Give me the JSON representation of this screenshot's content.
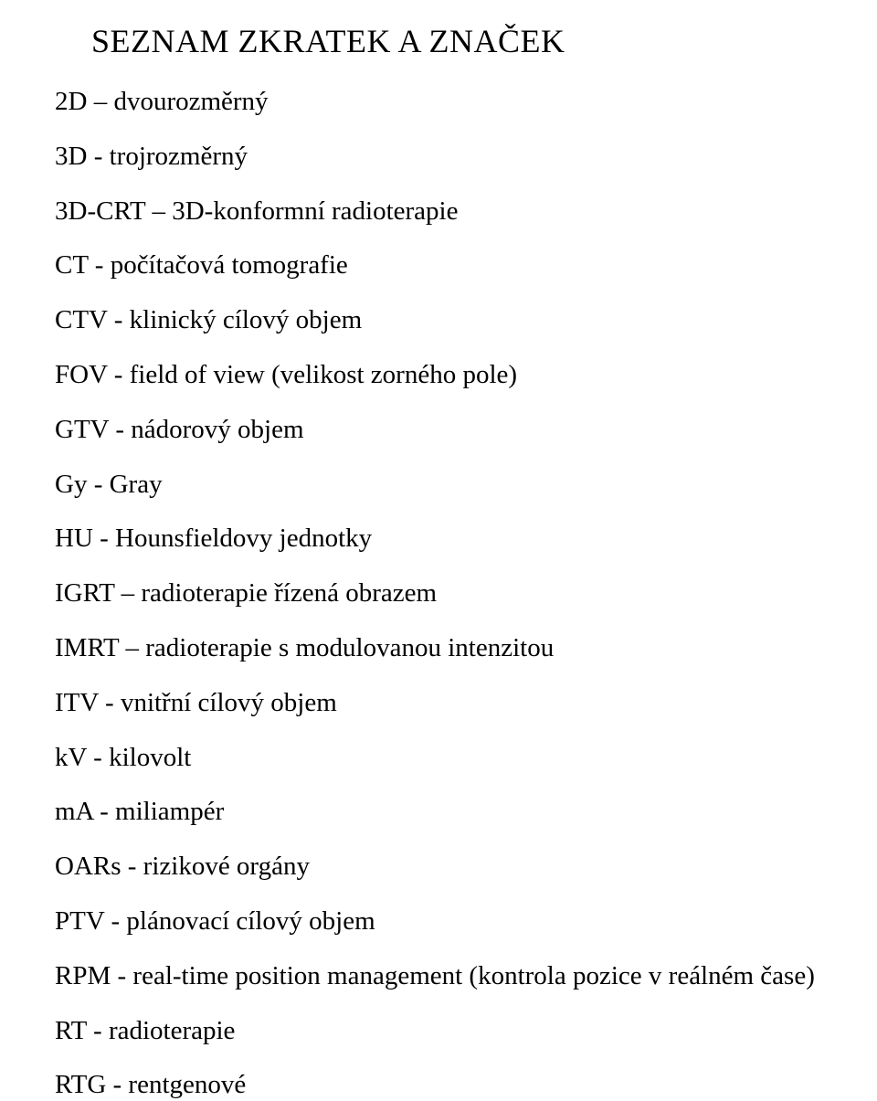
{
  "title": "SEZNAM ZKRATEK A ZNAČEK",
  "items": [
    "2D – dvourozměrný",
    "3D - trojrozměrný",
    "3D-CRT – 3D-konformní radioterapie",
    "CT - počítačová tomografie",
    "CTV - klinický cílový objem",
    "FOV - field of view (velikost zorného pole)",
    "GTV - nádorový objem",
    "Gy - Gray",
    "HU - Hounsfieldovy jednotky",
    "IGRT – radioterapie řízená obrazem",
    "IMRT – radioterapie s modulovanou intenzitou",
    "ITV - vnitřní cílový objem",
    "kV - kilovolt",
    "mA - miliampér",
    "OARs - rizikové orgány",
    "PTV - plánovací cílový objem",
    "RPM - real-time position management (kontrola pozice v reálném čase)",
    "RT - radioterapie",
    "RTG - rentgenové"
  ]
}
